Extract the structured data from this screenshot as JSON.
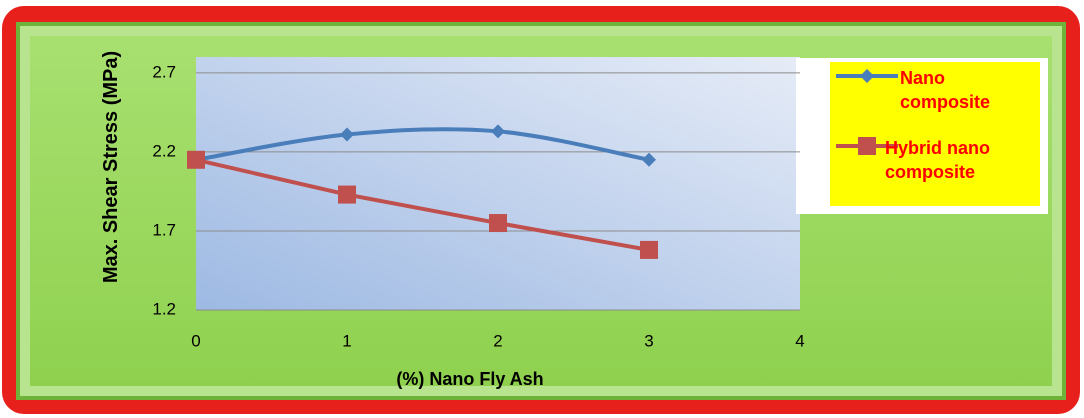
{
  "chart_data": {
    "type": "line",
    "x_label": "(%)  Nano  Fly  Ash",
    "y_label": "Max. Shear Stress (MPa)",
    "x": [
      0,
      1,
      2,
      3
    ],
    "series": [
      {
        "name": "Nano composite",
        "color": "#4a7ebb",
        "marker": "diamond",
        "smooth": true,
        "values": [
          2.15,
          2.31,
          2.33,
          2.15
        ]
      },
      {
        "name": "Hybrid nano composite",
        "color": "#c0504d",
        "marker": "square",
        "smooth": false,
        "values": [
          2.15,
          1.93,
          1.75,
          1.58
        ]
      }
    ],
    "xlim": [
      0,
      4
    ],
    "xticks": [
      0,
      1,
      2,
      3,
      4
    ],
    "ylim": [
      1.2,
      2.8
    ],
    "yticks": [
      1.2,
      1.7,
      2.2,
      2.7
    ],
    "grid": true,
    "legend": "upper right"
  }
}
